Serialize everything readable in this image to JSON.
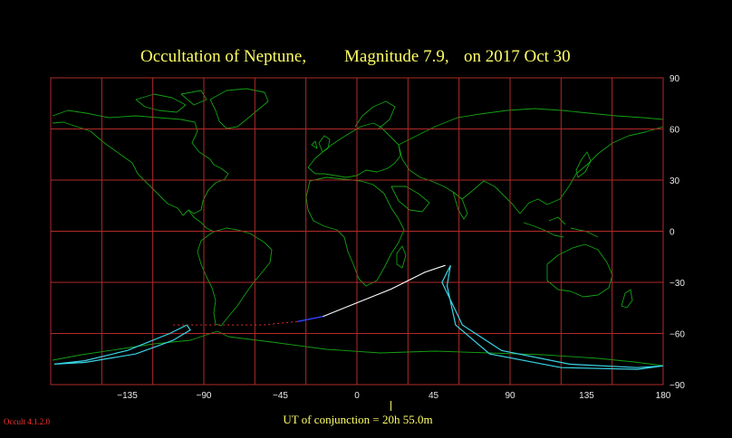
{
  "title": {
    "occultation": "Occultation  of  Neptune,",
    "magnitude": "Magnitude 7.9,",
    "date": "on  2017 Oct 30"
  },
  "conjunction_label": "UT of conjunction = 20h 55.0m",
  "version_label": "Occult 4.1.2.0",
  "map": {
    "lon_range": [
      -180,
      180
    ],
    "lat_range": [
      -90,
      90
    ],
    "lon_ticks": [
      "-135",
      "-90",
      "-45",
      "0",
      "45",
      "90",
      "135",
      "180"
    ],
    "lat_ticks": [
      "90",
      "60",
      "30",
      "0",
      "-30",
      "-60",
      "-90"
    ],
    "colors": {
      "background": "#000000",
      "grid": "#b22a2a",
      "coastline": "#14a014",
      "occultation_limits": "#39d4e6",
      "central_line_day": "#ffffff",
      "central_line_night": "#c82828",
      "central_line_twilight": "#3344ff",
      "title": "#ffff66",
      "version": "#ff3333"
    }
  },
  "chart_data": {
    "type": "map",
    "projection": "equirectangular",
    "conjunction_longitude": 20,
    "central_line": [
      [
        -108,
        -55
      ],
      [
        -80,
        -55
      ],
      [
        -55,
        -55
      ],
      [
        -30,
        -52
      ],
      [
        -5,
        -44
      ],
      [
        20,
        -34
      ],
      [
        40,
        -24
      ],
      [
        52,
        -20
      ]
    ],
    "central_line_segments": [
      {
        "visibility": "night",
        "points": [
          [
            -108,
            -55
          ],
          [
            -80,
            -55
          ],
          [
            -55,
            -55
          ],
          [
            -35,
            -53
          ]
        ]
      },
      {
        "visibility": "twilight",
        "points": [
          [
            -35,
            -53
          ],
          [
            -20,
            -50
          ]
        ]
      },
      {
        "visibility": "day",
        "points": [
          [
            -20,
            -50
          ],
          [
            -5,
            -44
          ],
          [
            20,
            -34
          ],
          [
            40,
            -24
          ],
          [
            52,
            -20
          ]
        ]
      }
    ],
    "limit_loops": [
      {
        "points": [
          [
            -100,
            -55
          ],
          [
            -110,
            -60
          ],
          [
            -135,
            -70
          ],
          [
            -160,
            -76
          ],
          [
            -178,
            -78
          ],
          [
            -160,
            -77
          ],
          [
            -130,
            -72
          ],
          [
            -108,
            -64
          ],
          [
            -98,
            -58
          ],
          [
            -100,
            -55
          ]
        ]
      },
      {
        "points": [
          [
            55,
            -20
          ],
          [
            50,
            -30
          ],
          [
            62,
            -55
          ],
          [
            85,
            -70
          ],
          [
            125,
            -78
          ],
          [
            165,
            -80
          ],
          [
            180,
            -79
          ],
          [
            165,
            -81
          ],
          [
            120,
            -80
          ],
          [
            78,
            -72
          ],
          [
            58,
            -55
          ],
          [
            53,
            -32
          ],
          [
            55,
            -20
          ]
        ]
      }
    ]
  }
}
